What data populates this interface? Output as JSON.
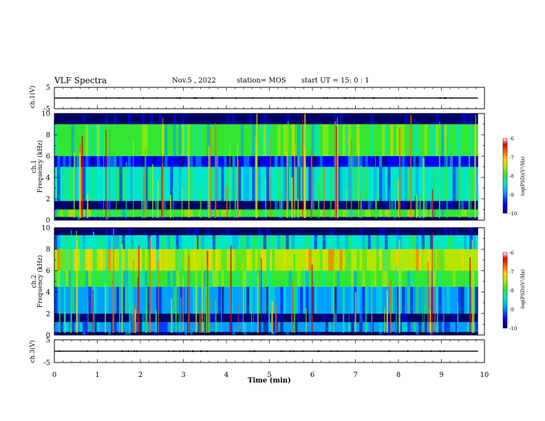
{
  "header": {
    "title": "VLF Spectra",
    "date": "Nov.5 , 2022",
    "station": "station= MOS",
    "start": "start UT = 15: 0 : 1"
  },
  "xaxis": {
    "label": "Time (min)",
    "ticks": [
      "0",
      "1",
      "2",
      "3",
      "4",
      "5",
      "6",
      "7",
      "8",
      "9",
      "10"
    ]
  },
  "panels": {
    "ch1_voltage": {
      "ylabel": "ch.1(V)",
      "ticks": [
        "5",
        "-5"
      ]
    },
    "ch1_spectrum": {
      "ylabel_line1": "ch.1",
      "ylabel_line2": "Frequency (kHz)",
      "ticks": [
        "0",
        "2",
        "4",
        "6",
        "8",
        "10"
      ]
    },
    "ch2_spectrum": {
      "ylabel_line1": "ch.2",
      "ylabel_line2": "Frequency (kHz)",
      "ticks": [
        "0",
        "2",
        "4",
        "6",
        "8",
        "10"
      ]
    },
    "ch3_voltage": {
      "ylabel": "ch.3(V)",
      "ticks": [
        "5",
        "-5"
      ]
    }
  },
  "colorbar": {
    "label": "log(PSD)(V²/Hz)",
    "ticks": [
      "-6",
      "-7",
      "-8",
      "-9",
      "-10"
    ],
    "colors": [
      "#000066",
      "#0000ff",
      "#00a0ff",
      "#00e6c8",
      "#32e632",
      "#b4e600",
      "#ffd200",
      "#ff6400",
      "#e60000",
      "#ffffff"
    ]
  },
  "chart_data": [
    {
      "type": "line",
      "title": "VLF Spectra",
      "panel": "ch.1(V)",
      "xlabel": "Time (min)",
      "ylabel": "ch.1(V)",
      "xlim": [
        0,
        10
      ],
      "ylim": [
        -5,
        5
      ],
      "x": [
        0,
        9.85
      ],
      "values": [
        0,
        0
      ]
    },
    {
      "type": "heatmap",
      "panel": "ch.1",
      "xlabel": "Time (min)",
      "ylabel": "Frequency (kHz)",
      "xlim": [
        0,
        10
      ],
      "ylim": [
        0,
        10
      ],
      "data_xrange": [
        0,
        9.85
      ],
      "colorbar_label": "log(PSD)(V²/Hz)",
      "colorbar_range": [
        -10,
        -6
      ],
      "bands_khz": [
        {
          "band": [
            0,
            0.3
          ],
          "level": -9.8
        },
        {
          "band": [
            0.3,
            1.0
          ],
          "level": -8.0
        },
        {
          "band": [
            1.0,
            1.8
          ],
          "level": -9.7
        },
        {
          "band": [
            1.8,
            5.0
          ],
          "level": -8.6
        },
        {
          "band": [
            5.0,
            6.0
          ],
          "level": -9.2
        },
        {
          "band": [
            6.0,
            9.0
          ],
          "level": -8.0
        },
        {
          "band": [
            9.0,
            10.0
          ],
          "level": -9.9
        }
      ]
    },
    {
      "type": "heatmap",
      "panel": "ch.2",
      "xlabel": "Time (min)",
      "ylabel": "Frequency (kHz)",
      "xlim": [
        0,
        10
      ],
      "ylim": [
        0,
        10
      ],
      "data_xrange": [
        0,
        9.85
      ],
      "colorbar_label": "log(PSD)(V²/Hz)",
      "colorbar_range": [
        -10,
        -6
      ],
      "bands_khz": [
        {
          "band": [
            0,
            0.3
          ],
          "level": -9.7
        },
        {
          "band": [
            0.3,
            1.2
          ],
          "level": -9.0
        },
        {
          "band": [
            1.2,
            2.0
          ],
          "level": -9.8
        },
        {
          "band": [
            2.0,
            4.5
          ],
          "level": -8.9
        },
        {
          "band": [
            4.5,
            6.0
          ],
          "level": -8.2
        },
        {
          "band": [
            6.0,
            8.0
          ],
          "level": -7.6
        },
        {
          "band": [
            8.0,
            9.3
          ],
          "level": -8.6
        },
        {
          "band": [
            9.3,
            10.0
          ],
          "level": -9.9
        }
      ]
    },
    {
      "type": "line",
      "panel": "ch.3(V)",
      "xlabel": "Time (min)",
      "ylabel": "ch.3(V)",
      "xlim": [
        0,
        10
      ],
      "ylim": [
        -5,
        5
      ],
      "x": [
        0,
        9.85
      ],
      "values": [
        0,
        0
      ]
    }
  ]
}
